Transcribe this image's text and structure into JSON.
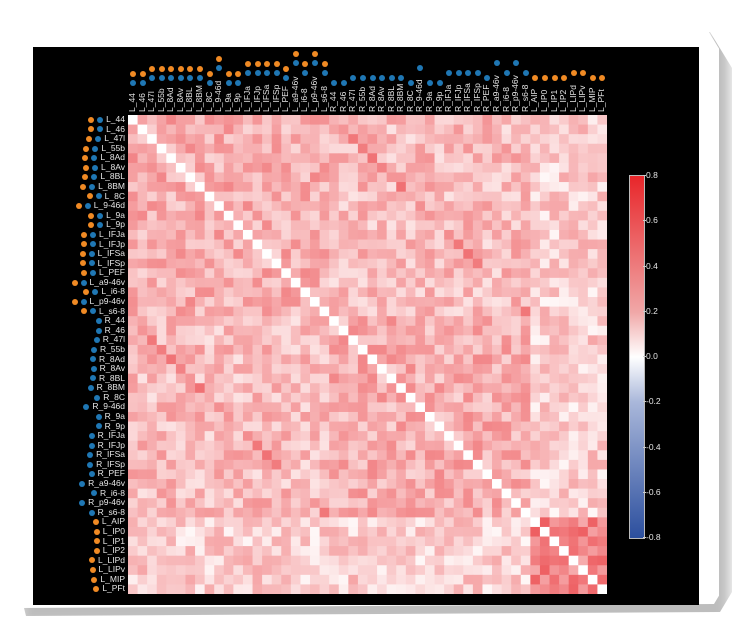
{
  "chart_data": {
    "type": "heatmap",
    "title": "",
    "xlabel": "",
    "ylabel": "",
    "labels": [
      "L_44",
      "L_46",
      "L_47l",
      "L_55b",
      "L_8Ad",
      "L_8Av",
      "L_8BL",
      "L_8BM",
      "L_8C",
      "L_9-46d",
      "L_9a",
      "L_9p",
      "L_IFJa",
      "L_IFJp",
      "L_IFSa",
      "L_IFSp",
      "L_PEF",
      "L_a9-46v",
      "L_i6-8",
      "L_p9-46v",
      "L_s6-8",
      "R_44",
      "R_46",
      "R_47l",
      "R_55b",
      "R_8Ad",
      "R_8Av",
      "R_8BL",
      "R_8BM",
      "R_8C",
      "R_9-46d",
      "R_9a",
      "R_9p",
      "R_IFJa",
      "R_IFJp",
      "R_IFSa",
      "R_IFSp",
      "R_PEF",
      "R_a9-46v",
      "R_i6-8",
      "R_p9-46v",
      "R_s6-8",
      "L_AIP",
      "L_IP0",
      "L_IP1",
      "L_IP2",
      "L_LIPd",
      "L_LIPv",
      "L_MIP",
      "L_PFt"
    ],
    "label_markers": [
      [
        "orange",
        "blue"
      ],
      [
        "orange",
        "blue"
      ],
      [
        "orange",
        "blue"
      ],
      [
        "orange",
        "blue"
      ],
      [
        "orange",
        "blue"
      ],
      [
        "orange",
        "blue"
      ],
      [
        "orange",
        "blue"
      ],
      [
        "orange",
        "blue"
      ],
      [
        "orange",
        "blue"
      ],
      [
        "orange",
        "blue"
      ],
      [
        "orange",
        "blue"
      ],
      [
        "orange",
        "blue"
      ],
      [
        "orange",
        "blue"
      ],
      [
        "orange",
        "blue"
      ],
      [
        "orange",
        "blue"
      ],
      [
        "orange",
        "blue"
      ],
      [
        "orange",
        "blue"
      ],
      [
        "orange",
        "blue"
      ],
      [
        "orange",
        "blue"
      ],
      [
        "orange",
        "blue"
      ],
      [
        "orange",
        "blue"
      ],
      [
        "blue"
      ],
      [
        "blue"
      ],
      [
        "blue"
      ],
      [
        "blue"
      ],
      [
        "blue"
      ],
      [
        "blue"
      ],
      [
        "blue"
      ],
      [
        "blue"
      ],
      [
        "blue"
      ],
      [
        "blue"
      ],
      [
        "blue"
      ],
      [
        "blue"
      ],
      [
        "blue"
      ],
      [
        "blue"
      ],
      [
        "blue"
      ],
      [
        "blue"
      ],
      [
        "blue"
      ],
      [
        "blue"
      ],
      [
        "blue"
      ],
      [
        "blue"
      ],
      [
        "blue"
      ],
      [
        "orange"
      ],
      [
        "orange"
      ],
      [
        "orange"
      ],
      [
        "orange"
      ],
      [
        "orange"
      ],
      [
        "orange"
      ],
      [
        "orange"
      ],
      [
        "orange"
      ]
    ],
    "value_range": [
      -0.8,
      0.8
    ],
    "diagonal": 0.0,
    "description": "Symmetric 50x50 correlation matrix; off-diagonal values mostly positive (~0.1-0.4); stronger within-block values (~0.4-0.55) among L parietal regions (L_AIP..L_PFt); frontal blocks moderate (~0.2-0.45).",
    "block_means": {
      "L_frontal_within": 0.3,
      "R_frontal_within": 0.3,
      "L_vs_R_frontal": 0.25,
      "L_parietal_within": 0.45,
      "parietal_vs_frontal": 0.18
    },
    "colorbar": {
      "ticks": [
        "0.8",
        "0.6",
        "0.4",
        "0.2",
        "0.0",
        "-0.2",
        "-0.4",
        "-0.6",
        "-0.8"
      ],
      "cmap": "bwr",
      "colors": {
        "max": "#e8262a",
        "mid": "#ffffff",
        "min": "#2c4f9e"
      }
    },
    "grid": false,
    "legend_position": "right"
  },
  "colors": {
    "orange": "#f08a24",
    "blue": "#1f77b4",
    "background": "#000000"
  }
}
